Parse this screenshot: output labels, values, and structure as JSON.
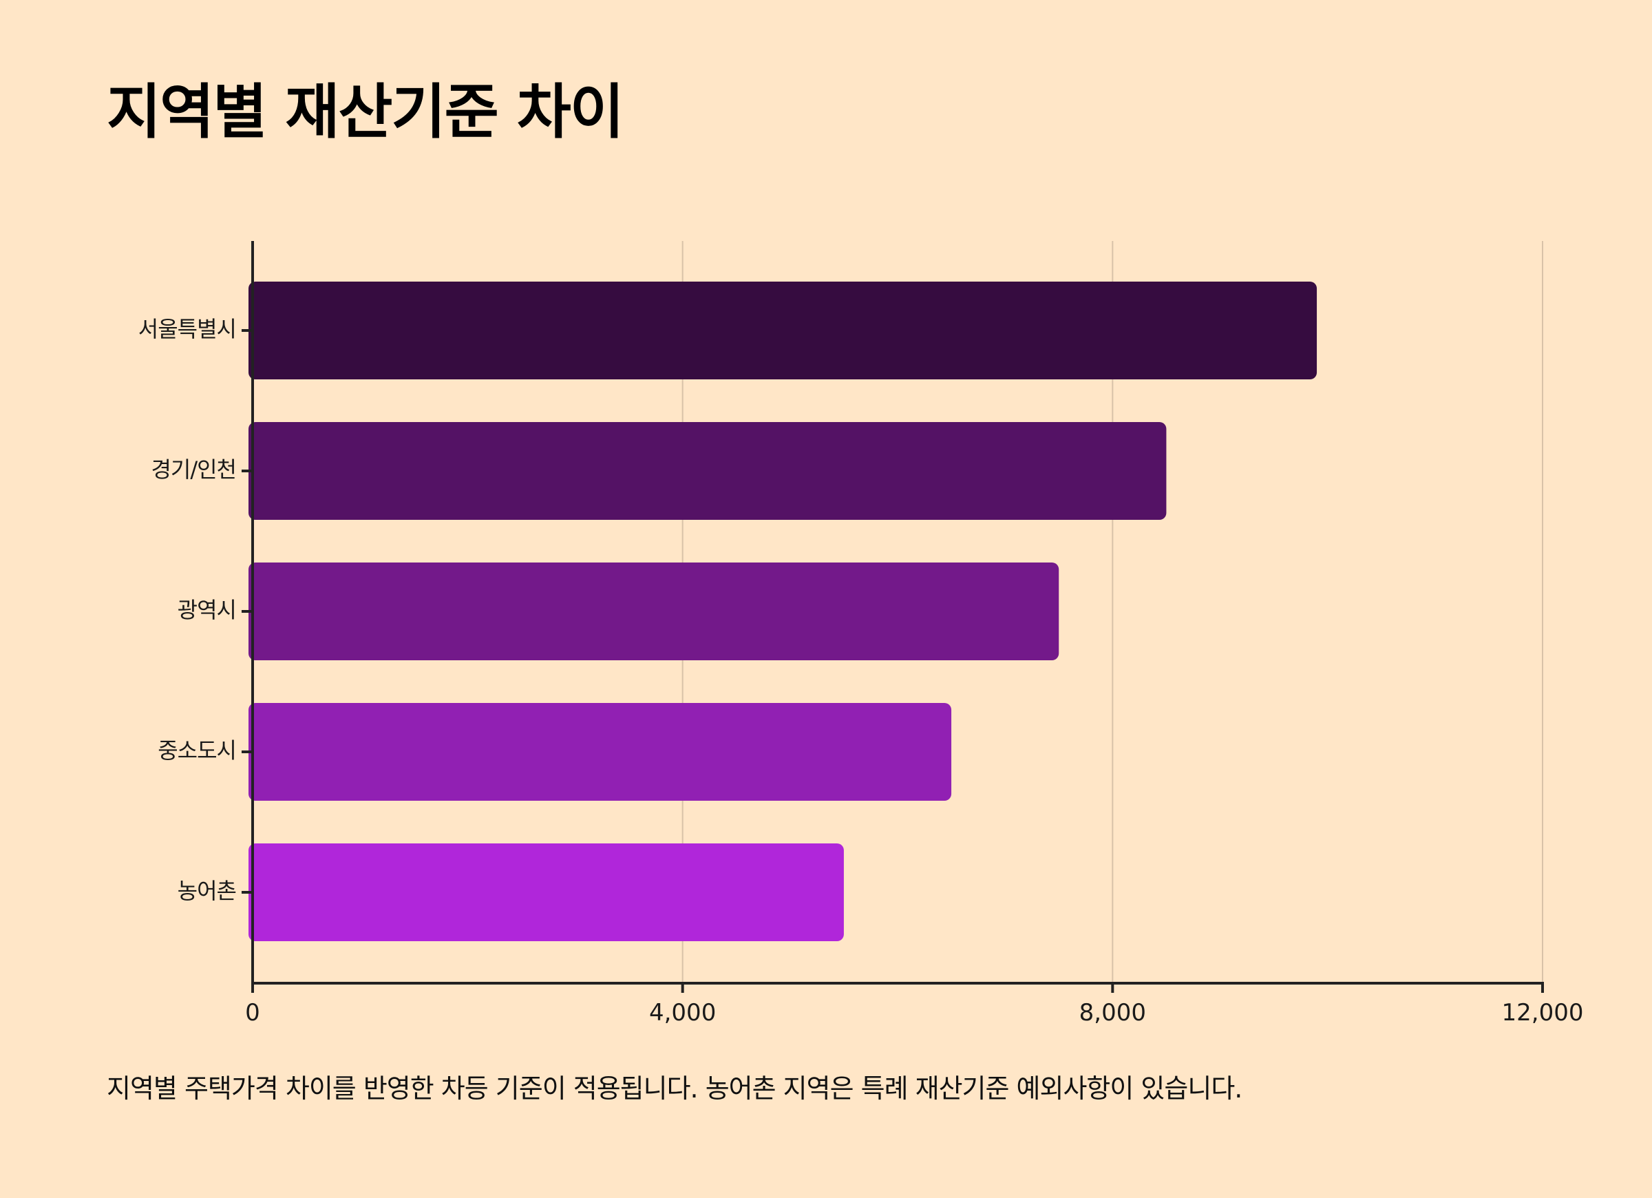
{
  "title": "지역별 재산기준 차이",
  "footnote": "지역별 주택가격 차이를 반영한 차등 기준이 적용됩니다. 농어촌 지역은 특례 재산기준 예외사항이 있습니다.",
  "chart_data": {
    "type": "bar",
    "orientation": "horizontal",
    "title": "지역별 재산기준 차이",
    "xlabel": "",
    "ylabel": "",
    "categories": [
      "서울특별시",
      "경기/인천",
      "광역시",
      "중소도시",
      "농어촌"
    ],
    "values": [
      9900,
      8500,
      7500,
      6500,
      5500
    ],
    "xlim": [
      0,
      12000
    ],
    "xticks": [
      0,
      4000,
      8000,
      12000
    ],
    "xtick_labels": [
      "0",
      "4,000",
      "8,000",
      "12,000"
    ],
    "grid": "vertical",
    "bar_colors": [
      "#360C40",
      "#541265",
      "#73198A",
      "#9120B3",
      "#B026DA"
    ],
    "grid_color": "#D8C2A8",
    "axis_color": "#222222",
    "background": "#FFE6C7"
  }
}
